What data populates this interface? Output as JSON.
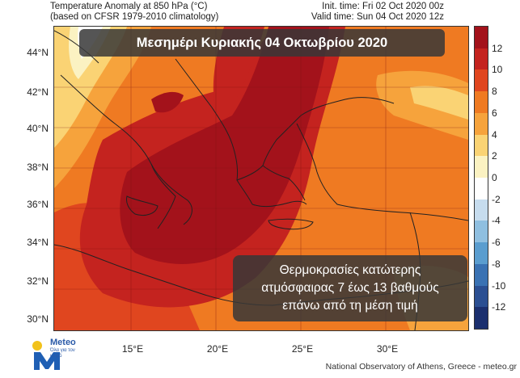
{
  "header": {
    "left_line1": "Temperature Anomaly at 850 hPa (°C)",
    "left_line2": "(based on CFSR 1979-2010 climatology)",
    "right_line1": "Init. time: Fri 02 Oct 2020 00z",
    "right_line2": "Valid time: Sun 04 Oct 2020 12z"
  },
  "title": "Μεσημέρι Κυριακής 04 Οκτωβρίου 2020",
  "info": {
    "line1": "Θερμοκρασίες  κατώτερης",
    "line2": "ατμόσφαιρας 7 έως 13 βαθμούς",
    "line3": "επάνω από τη μέση τιμή"
  },
  "axes": {
    "lat_labels": [
      "44°N",
      "42°N",
      "40°N",
      "38°N",
      "36°N",
      "34°N",
      "32°N",
      "30°N"
    ],
    "lon_labels": [
      "15°E",
      "20°E",
      "25°E",
      "30°E"
    ]
  },
  "colorbar": {
    "labels": [
      "12",
      "10",
      "8",
      "6",
      "4",
      "2",
      "0",
      "-2",
      "-4",
      "-6",
      "-8",
      "-10",
      "-12"
    ],
    "colors": [
      "#a3121b",
      "#c4231f",
      "#e0461f",
      "#ef7a22",
      "#f6a33c",
      "#fad374",
      "#fbf2c2",
      "#ffffff",
      "#c6dcee",
      "#8fbfe0",
      "#5a9dcf",
      "#3a72b3",
      "#2b4f92",
      "#1b2f6e"
    ]
  },
  "logo": {
    "name": "Meteo",
    "tagline": "Όλα για τον καιρό"
  },
  "footer": "National Observatory of Athens, Greece - meteo.gr"
}
